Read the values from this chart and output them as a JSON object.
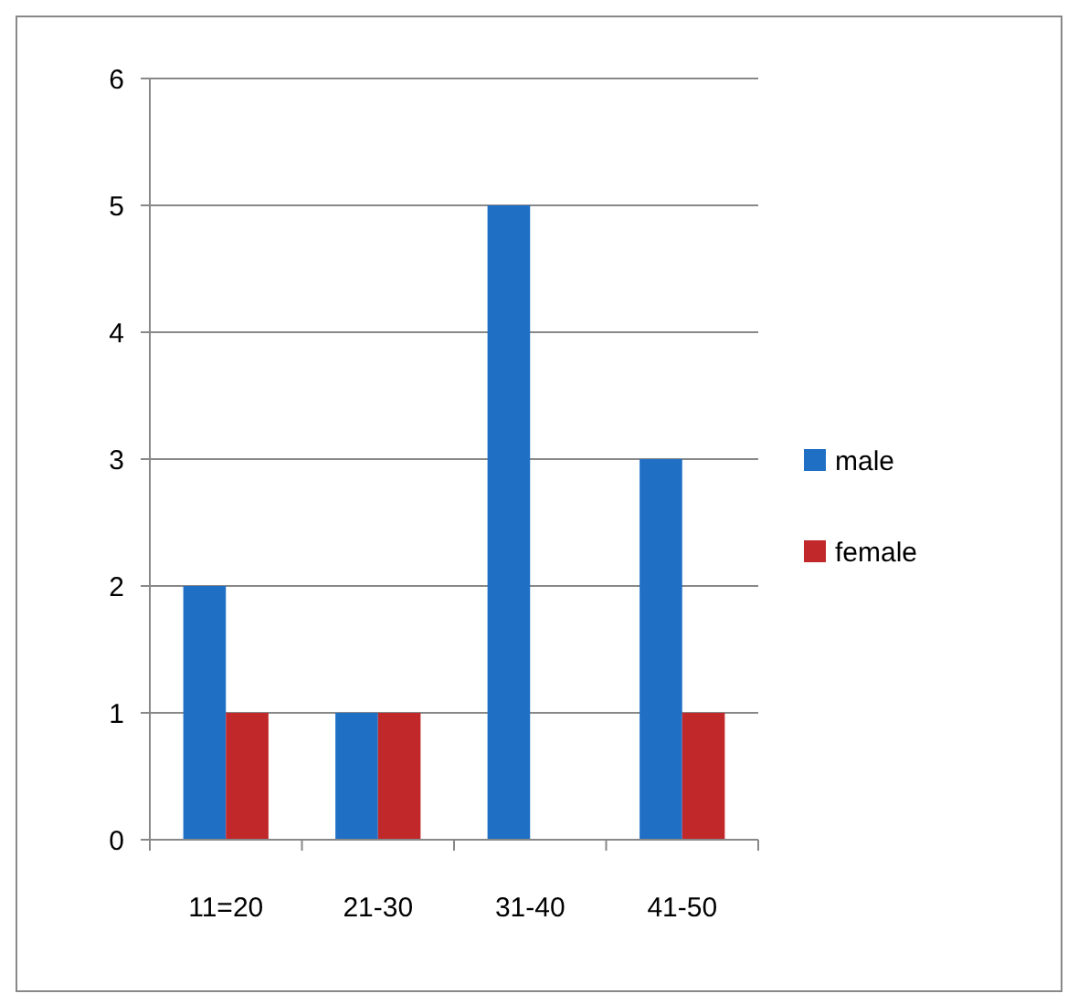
{
  "chart_data": {
    "type": "bar",
    "categories": [
      "11=20",
      "21-30",
      "31-40",
      "41-50"
    ],
    "series": [
      {
        "name": "male",
        "color": "#1f6fc5",
        "values": [
          2,
          1,
          5,
          3
        ]
      },
      {
        "name": "female",
        "color": "#c0282a",
        "values": [
          1,
          1,
          0,
          1
        ]
      }
    ],
    "ylim": [
      0,
      6
    ],
    "yticks": [
      0,
      1,
      2,
      3,
      4,
      5,
      6
    ],
    "grid": "y",
    "legend": "right"
  }
}
